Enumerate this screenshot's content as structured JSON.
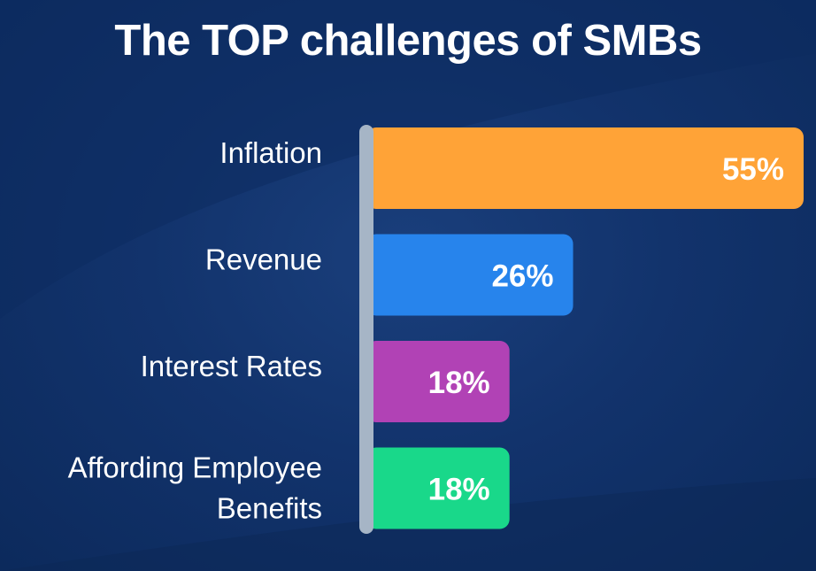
{
  "chart_data": {
    "type": "bar",
    "orientation": "horizontal",
    "title": "The TOP challenges of SMBs",
    "categories": [
      "Inflation",
      "Revenue",
      "Interest Rates",
      "Affording Employee Benefits"
    ],
    "values": [
      55,
      26,
      18,
      18
    ],
    "value_labels": [
      "55%",
      "26%",
      "18%",
      "18%"
    ],
    "bar_colors": [
      "#ffa337",
      "#2784ec",
      "#b142b5",
      "#19d88a"
    ],
    "xlabel": "",
    "ylabel": "",
    "grid": false,
    "legend": "none"
  }
}
